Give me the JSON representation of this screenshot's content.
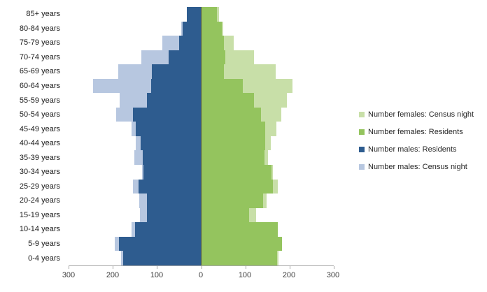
{
  "chart_data": {
    "type": "bar",
    "subtype": "population-pyramid",
    "title": "",
    "categories": [
      "85+ years",
      "80-84 years",
      "75-79 years",
      "70-74 years",
      "65-69 years",
      "60-64 years",
      "55-59 years",
      "50-54 years",
      "45-49 years",
      "40-44 years",
      "35-39 years",
      "30-34 years",
      "25-29 years",
      "20-24 years",
      "15-19 years",
      "10-14 years",
      "5-9 years",
      "0-4 years"
    ],
    "series": [
      {
        "name": "Number females: Census night",
        "side": "female",
        "layer": "behind",
        "color": "#c8dfa8",
        "values": [
          42,
          51,
          75,
          121,
          170,
          208,
          195,
          182,
          171,
          158,
          153,
          164,
          175,
          149,
          125,
          174,
          184,
          176
        ]
      },
      {
        "name": "Number females: Residents",
        "side": "female",
        "layer": "front",
        "color": "#94c45e",
        "values": [
          36,
          48,
          52,
          56,
          52,
          95,
          120,
          136,
          146,
          146,
          145,
          161,
          163,
          142,
          110,
          174,
          184,
          173
        ]
      },
      {
        "name": "Number males: Residents",
        "side": "male",
        "layer": "front",
        "color": "#2e5c8f",
        "values": [
          31,
          42,
          50,
          73,
          111,
          113,
          122,
          154,
          147,
          137,
          132,
          130,
          141,
          123,
          123,
          149,
          185,
          177
        ]
      },
      {
        "name": "Number males: Census night",
        "side": "male",
        "layer": "behind",
        "color": "#b7c7e0",
        "values": [
          31,
          45,
          87,
          135,
          188,
          244,
          184,
          192,
          157,
          148,
          151,
          133,
          154,
          139,
          138,
          157,
          195,
          181
        ]
      }
    ],
    "x_axis": {
      "tick_labels": [
        "300",
        "200",
        "100",
        "0",
        "100",
        "200",
        "300"
      ],
      "max_per_side": 300
    },
    "legend_position": "right",
    "grid": false,
    "axis_color": "#a6a6a6",
    "center_line_color": "#4d4d4d",
    "background_color": "#ffffff"
  }
}
